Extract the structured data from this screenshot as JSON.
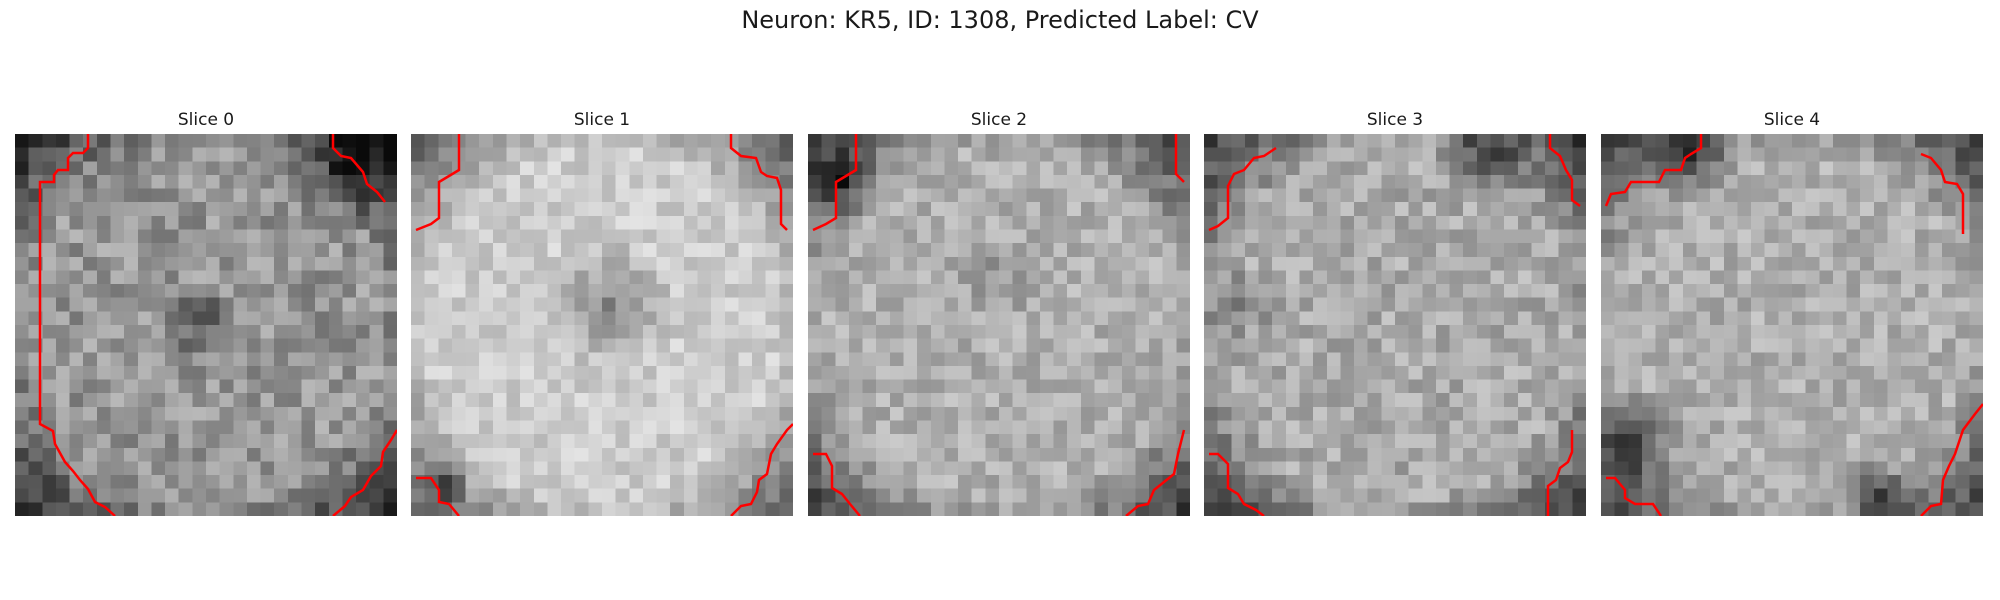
{
  "figure": {
    "title": "Neuron: KR5, ID: 1308, Predicted Label: CV"
  },
  "slices": [
    {
      "label": "Slice 0"
    },
    {
      "label": "Slice 1"
    },
    {
      "label": "Slice 2"
    },
    {
      "label": "Slice 3"
    },
    {
      "label": "Slice 4"
    }
  ],
  "colors": {
    "contour": "#ff0000",
    "colormap": "gray"
  }
}
